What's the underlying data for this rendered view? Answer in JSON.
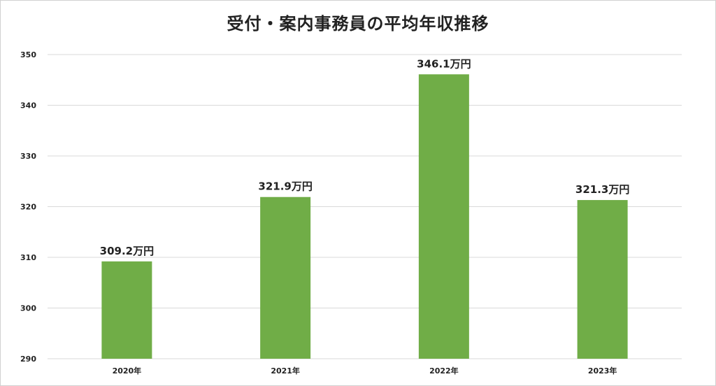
{
  "chart_data": {
    "type": "bar",
    "title": "受付・案内事務員の平均年収推移",
    "categories": [
      "2020年",
      "2021年",
      "2022年",
      "2023年"
    ],
    "values": [
      309.2,
      321.9,
      346.1,
      321.3
    ],
    "data_labels": [
      "309.2万円",
      "321.9万円",
      "346.1万円",
      "321.3万円"
    ],
    "yticks": [
      290,
      300,
      310,
      320,
      330,
      340,
      350
    ],
    "ylim": [
      290,
      350
    ],
    "grid": true,
    "bar_color": "#70AD47",
    "grid_color": "#D9D9D9",
    "xlabel": "",
    "ylabel": ""
  }
}
